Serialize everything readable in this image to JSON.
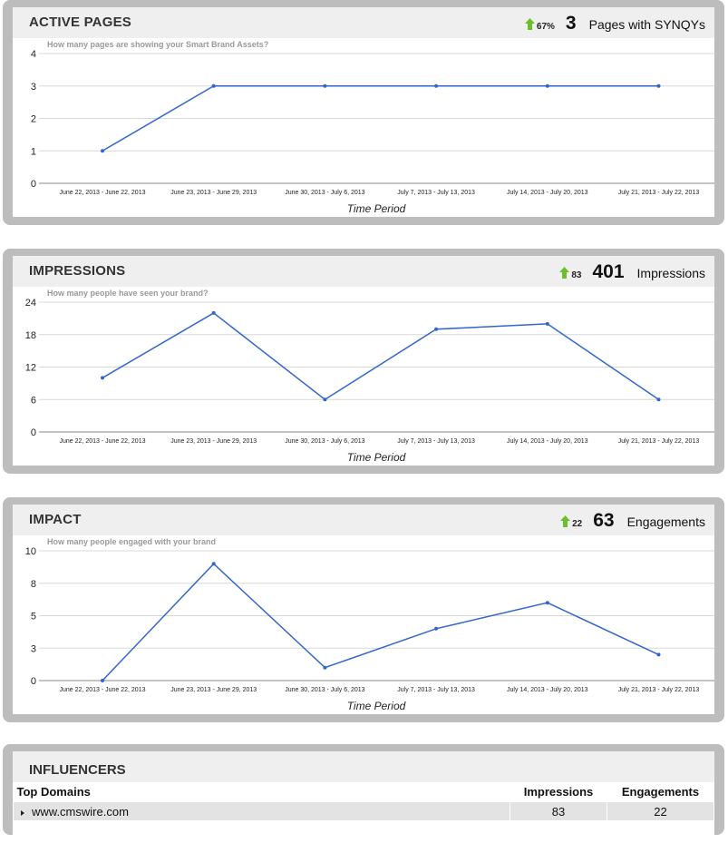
{
  "charts": [
    {
      "id": "active",
      "title": "ACTIVE PAGES",
      "change": "67%",
      "metric_value": "3",
      "metric_label": "Pages with SYNQYs",
      "question": "How many pages are showing your Smart Brand Assets?",
      "yticks": [
        "0",
        "1",
        "2",
        "3",
        "4"
      ]
    },
    {
      "id": "impressions",
      "title": "IMPRESSIONS",
      "change": "83",
      "metric_value": "401",
      "metric_label": "Impressions",
      "question": "How many people have seen your brand?",
      "yticks": [
        "0",
        "6",
        "12",
        "18",
        "24"
      ]
    },
    {
      "id": "impact",
      "title": "IMPACT",
      "change": "22",
      "metric_value": "63",
      "metric_label": "Engagements",
      "question": "How many people engaged with your brand",
      "yticks": [
        "0",
        "3",
        "5",
        "8",
        "10"
      ]
    }
  ],
  "chart_data": [
    {
      "type": "line",
      "title": "ACTIVE PAGES",
      "xlabel": "Time Period",
      "ylabel": "",
      "categories": [
        "June 22, 2013 - June 22, 2013",
        "June 23, 2013 - June 29, 2013",
        "June 30, 2013 - July 6, 2013",
        "July 7, 2013 - July 13, 2013",
        "July 14, 2013 - July 20, 2013",
        "July 21, 2013 - July 22, 2013"
      ],
      "series": [
        {
          "values": [
            1,
            3,
            3,
            3,
            3,
            3
          ]
        }
      ],
      "ylim": [
        0,
        4
      ],
      "grid": true,
      "line_color": "#3366cc"
    },
    {
      "type": "line",
      "title": "IMPRESSIONS",
      "xlabel": "Time Period",
      "ylabel": "",
      "categories": [
        "June 22, 2013 - June 22, 2013",
        "June 23, 2013 - June 29, 2013",
        "June 30, 2013 - July 6, 2013",
        "July 7, 2013 - July 13, 2013",
        "July 14, 2013 - July 20, 2013",
        "July 21, 2013 - July 22, 2013"
      ],
      "series": [
        {
          "values": [
            10,
            22,
            6,
            19,
            20,
            6
          ]
        }
      ],
      "ylim": [
        0,
        24
      ],
      "grid": true,
      "line_color": "#3366cc"
    },
    {
      "type": "line",
      "title": "IMPACT",
      "xlabel": "Time Period",
      "ylabel": "",
      "categories": [
        "June 22, 2013 - June 22, 2013",
        "June 23, 2013 - June 29, 2013",
        "June 30, 2013 - July 6, 2013",
        "July 7, 2013 - July 13, 2013",
        "July 14, 2013 - July 20, 2013",
        "July 21, 2013 - July 22, 2013"
      ],
      "series": [
        {
          "values": [
            0,
            9,
            1,
            4,
            6,
            2
          ]
        }
      ],
      "ylim": [
        0,
        10
      ],
      "grid": true,
      "line_color": "#3366cc"
    }
  ],
  "influencers": {
    "title": "INFLUENCERS",
    "columns": [
      "Top Domains",
      "Impressions",
      "Engagements"
    ],
    "rows": [
      {
        "domain": "www.cmswire.com",
        "impressions": "83",
        "engagements": "22"
      }
    ]
  },
  "colors": {
    "arrow": "#6cbf2a",
    "line": "#3366cc",
    "panel_border": "#bdbdbd",
    "header_bg": "#efefef"
  }
}
